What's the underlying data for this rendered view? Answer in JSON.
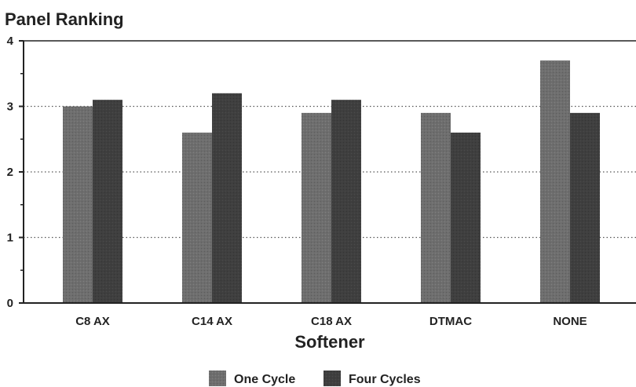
{
  "chart_data": {
    "type": "bar",
    "ylabel": "Panel Ranking",
    "xlabel": "Softener",
    "ylim": [
      0,
      4
    ],
    "yticks": [
      "0",
      "1",
      "2",
      "3",
      "4"
    ],
    "categories": [
      "C8 AX",
      "C14 AX",
      "C18 AX",
      "DTMAC",
      "NONE"
    ],
    "series": [
      {
        "name": "One Cycle",
        "color": "#6e6e6e",
        "values": [
          3.0,
          2.6,
          2.9,
          2.9,
          3.7
        ]
      },
      {
        "name": "Four Cycles",
        "color": "#3f3f3f",
        "values": [
          3.1,
          3.2,
          3.1,
          2.6,
          2.9
        ]
      }
    ],
    "grid": "dotted horizontal",
    "legend": "bottom-center"
  }
}
